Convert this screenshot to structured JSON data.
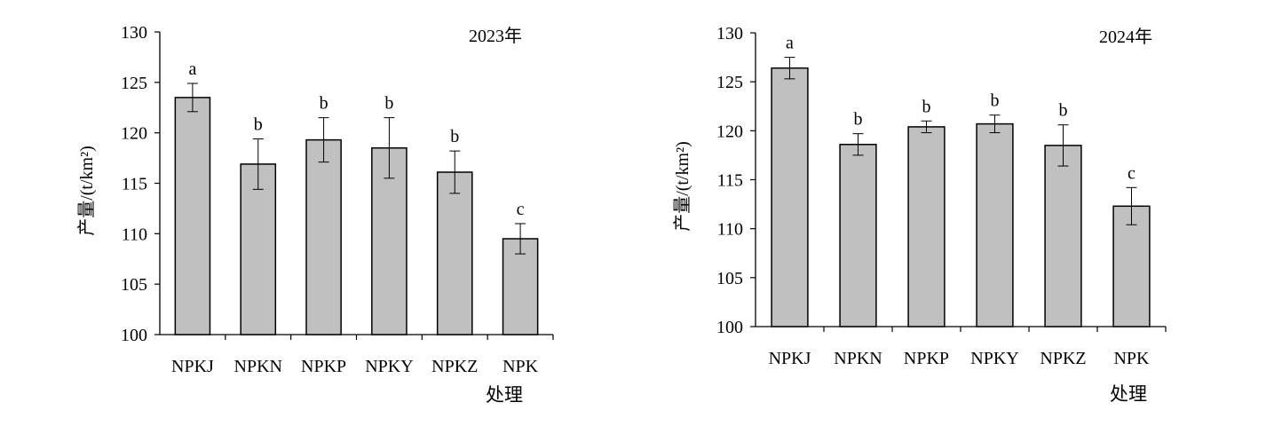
{
  "chart_data": [
    {
      "type": "bar",
      "year_label": "2023年",
      "ylabel": "产量/(t/km²)",
      "xlabel": "处理",
      "categories": [
        "NPKJ",
        "NPKN",
        "NPKP",
        "NPKY",
        "NPKZ",
        "NPK"
      ],
      "values": [
        123.5,
        116.9,
        119.3,
        118.5,
        116.1,
        109.5
      ],
      "errors": [
        1.4,
        2.5,
        2.2,
        3.0,
        2.1,
        1.5
      ],
      "letters": [
        "a",
        "b",
        "b",
        "b",
        "b",
        "c"
      ],
      "ylim": [
        100,
        130
      ],
      "yticks": [
        100,
        105,
        110,
        115,
        120,
        125,
        130
      ],
      "bar_color": "#c0c0c0",
      "grid": false
    },
    {
      "type": "bar",
      "year_label": "2024年",
      "ylabel": "产量/(t/km²)",
      "xlabel": "处理",
      "categories": [
        "NPKJ",
        "NPKN",
        "NPKP",
        "NPKY",
        "NPKZ",
        "NPK"
      ],
      "values": [
        126.4,
        118.6,
        120.4,
        120.7,
        118.5,
        112.3
      ],
      "errors": [
        1.1,
        1.1,
        0.6,
        0.9,
        2.1,
        1.9
      ],
      "letters": [
        "a",
        "b",
        "b",
        "b",
        "b",
        "c"
      ],
      "ylim": [
        100,
        130
      ],
      "yticks": [
        100,
        105,
        110,
        115,
        120,
        125,
        130
      ],
      "bar_color": "#c0c0c0",
      "grid": false
    }
  ]
}
